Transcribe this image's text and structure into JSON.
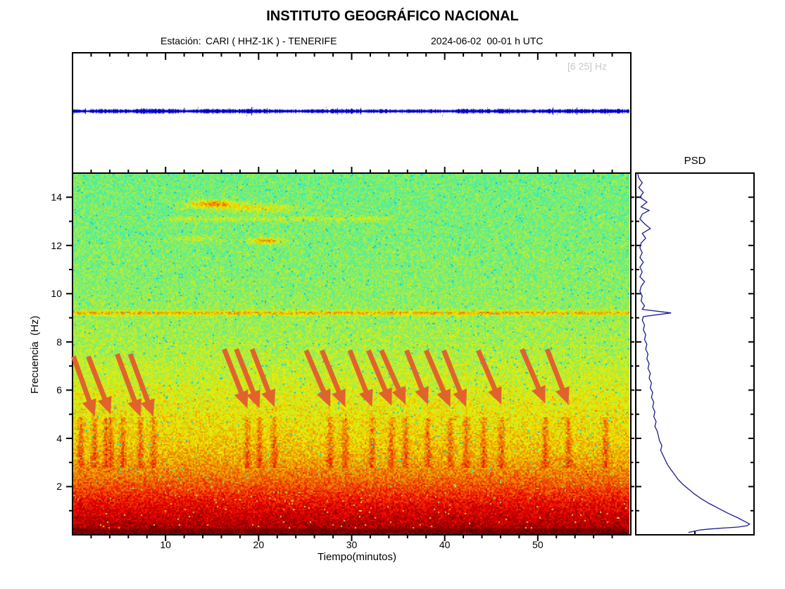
{
  "header": {
    "title": "INSTITUTO GEOGRÁFICO NACIONAL",
    "station_label": "Estación:",
    "station_value": "CARI ( HHZ-1K ) - TENERIFE",
    "datetime": "2024-06-02  00-01 h UTC"
  },
  "chart_data": [
    {
      "panel": "seismogram",
      "type": "line",
      "x_range_minutes": [
        0,
        60
      ],
      "band_label": "[6 25] Hz",
      "band_label_color": "#c9c9c9",
      "line_color": "#0000cc",
      "note": "flat noisy band-passed trace, no visible events"
    },
    {
      "panel": "spectrogram",
      "type": "heatmap",
      "xlabel": "Tiempo(minutos)",
      "ylabel": "Frecuencia  (Hz)",
      "x_range_minutes": [
        0,
        60
      ],
      "y_range_hz": [
        0,
        15
      ],
      "xticks": [
        10,
        20,
        30,
        40,
        50
      ],
      "xtick_minor_step": 2,
      "yticks": [
        2,
        4,
        6,
        8,
        10,
        12,
        14
      ],
      "ytick_minor_step": 1,
      "colormap": "jet",
      "background_profile_hz_value": [
        [
          0,
          0.97
        ],
        [
          0.5,
          0.93
        ],
        [
          1,
          0.895
        ],
        [
          1.5,
          0.845
        ],
        [
          2,
          0.79
        ],
        [
          2.5,
          0.745
        ],
        [
          3,
          0.705
        ],
        [
          3.5,
          0.675
        ],
        [
          4,
          0.655
        ],
        [
          4.5,
          0.64
        ],
        [
          5,
          0.628
        ],
        [
          5.5,
          0.615
        ],
        [
          6,
          0.6
        ],
        [
          6.5,
          0.585
        ],
        [
          7,
          0.572
        ],
        [
          7.5,
          0.558
        ],
        [
          8,
          0.548
        ],
        [
          9,
          0.535
        ],
        [
          10,
          0.522
        ],
        [
          11,
          0.514
        ],
        [
          12,
          0.508
        ],
        [
          13,
          0.502
        ],
        [
          14,
          0.498
        ],
        [
          15,
          0.496
        ]
      ],
      "features": {
        "persistent_line_hz": 9.2,
        "high_freq_streaks": [
          {
            "f": 13.72,
            "t_center": 15.2,
            "t_sigma": 2.6,
            "amp": 0.24
          },
          {
            "f": 13.55,
            "t_center": 20.0,
            "t_sigma": 4.0,
            "amp": 0.12
          },
          {
            "f": 12.2,
            "t_center": 20.8,
            "t_sigma": 1.7,
            "amp": 0.2
          },
          {
            "f": 12.28,
            "t_center": 13.5,
            "t_sigma": 2.2,
            "amp": 0.08
          }
        ],
        "faint_line": {
          "f": 13.1,
          "t_from": 9.5,
          "t_to": 35,
          "amp": 0.08
        },
        "event_times_min": [
          0.9,
          2.4,
          3.6,
          4.1,
          5.4,
          7.3,
          8.7,
          18.8,
          20.1,
          21.7,
          27.7,
          29.3,
          32.2,
          34.3,
          35.8,
          38.2,
          40.6,
          42.3,
          44.2,
          46.1,
          50.8,
          53.3,
          57.3
        ],
        "event_band_hz": [
          2.8,
          4.9
        ]
      },
      "annotation_arrows": {
        "color": "#e2622d",
        "list": [
          [
            0.1,
            7.4,
            2.4,
            4.9
          ],
          [
            1.7,
            7.4,
            4.1,
            5.0
          ],
          [
            4.8,
            7.5,
            7.3,
            4.9
          ],
          [
            6.2,
            7.5,
            8.7,
            4.9
          ],
          [
            16.3,
            7.7,
            18.8,
            5.25
          ],
          [
            17.6,
            7.7,
            20.1,
            5.25
          ],
          [
            19.3,
            7.7,
            21.7,
            5.3
          ],
          [
            25.1,
            7.65,
            27.7,
            5.3
          ],
          [
            26.8,
            7.65,
            29.3,
            5.3
          ],
          [
            29.8,
            7.65,
            32.2,
            5.3
          ],
          [
            31.8,
            7.65,
            34.3,
            5.35
          ],
          [
            33.2,
            7.65,
            35.8,
            5.4
          ],
          [
            35.9,
            7.65,
            38.2,
            5.4
          ],
          [
            38.0,
            7.65,
            40.6,
            5.3
          ],
          [
            39.9,
            7.65,
            42.3,
            5.3
          ],
          [
            43.6,
            7.65,
            46.1,
            5.4
          ],
          [
            48.3,
            7.7,
            50.8,
            5.45
          ],
          [
            51.0,
            7.7,
            53.3,
            5.4
          ]
        ]
      }
    },
    {
      "panel": "psd",
      "type": "line",
      "title": "PSD",
      "orientation": "power (x) vs frequency (y), shares 0-15 Hz axis",
      "line_color": "#1b1b8f",
      "points_freq_powerpct": [
        [
          15,
          1
        ],
        [
          14.8,
          2
        ],
        [
          14.6,
          5
        ],
        [
          14.4,
          2
        ],
        [
          14.2,
          6
        ],
        [
          14.0,
          3
        ],
        [
          13.8,
          9
        ],
        [
          13.6,
          4
        ],
        [
          13.45,
          11
        ],
        [
          13.3,
          5
        ],
        [
          13.1,
          3
        ],
        [
          12.9,
          7
        ],
        [
          12.7,
          12
        ],
        [
          12.5,
          5
        ],
        [
          12.3,
          8
        ],
        [
          12.1,
          4
        ],
        [
          11.9,
          3
        ],
        [
          11.7,
          5
        ],
        [
          11.5,
          3
        ],
        [
          11.3,
          6
        ],
        [
          11.1,
          3
        ],
        [
          10.9,
          5
        ],
        [
          10.7,
          3
        ],
        [
          10.5,
          7
        ],
        [
          10.3,
          4
        ],
        [
          10.1,
          3
        ],
        [
          9.9,
          5
        ],
        [
          9.7,
          4
        ],
        [
          9.5,
          7
        ],
        [
          9.35,
          5
        ],
        [
          9.2,
          30
        ],
        [
          9.05,
          6
        ],
        [
          8.9,
          5
        ],
        [
          8.7,
          7
        ],
        [
          8.5,
          6
        ],
        [
          8.3,
          8
        ],
        [
          8.1,
          7
        ],
        [
          7.9,
          9
        ],
        [
          7.7,
          8
        ],
        [
          7.5,
          10
        ],
        [
          7.3,
          9
        ],
        [
          7.1,
          11
        ],
        [
          6.9,
          10
        ],
        [
          6.7,
          12
        ],
        [
          6.5,
          11
        ],
        [
          6.3,
          13
        ],
        [
          6.1,
          12
        ],
        [
          5.9,
          14
        ],
        [
          5.7,
          13
        ],
        [
          5.5,
          15
        ],
        [
          5.3,
          14
        ],
        [
          5.1,
          16
        ],
        [
          4.9,
          15
        ],
        [
          4.7,
          17
        ],
        [
          4.5,
          16
        ],
        [
          4.3,
          18
        ],
        [
          4.1,
          19
        ],
        [
          3.9,
          20
        ],
        [
          3.7,
          22
        ],
        [
          3.5,
          21
        ],
        [
          3.3,
          23
        ],
        [
          3.1,
          25
        ],
        [
          2.9,
          27
        ],
        [
          2.7,
          30
        ],
        [
          2.5,
          33
        ],
        [
          2.3,
          36
        ],
        [
          2.1,
          40
        ],
        [
          1.9,
          45
        ],
        [
          1.7,
          50
        ],
        [
          1.5,
          56
        ],
        [
          1.3,
          63
        ],
        [
          1.1,
          71
        ],
        [
          0.9,
          79
        ],
        [
          0.7,
          88
        ],
        [
          0.55,
          94
        ],
        [
          0.45,
          98
        ],
        [
          0.38,
          96
        ],
        [
          0.32,
          88
        ],
        [
          0.28,
          75
        ],
        [
          0.24,
          63
        ],
        [
          0.2,
          55
        ],
        [
          0.15,
          50
        ],
        [
          0.1,
          45
        ]
      ]
    }
  ]
}
